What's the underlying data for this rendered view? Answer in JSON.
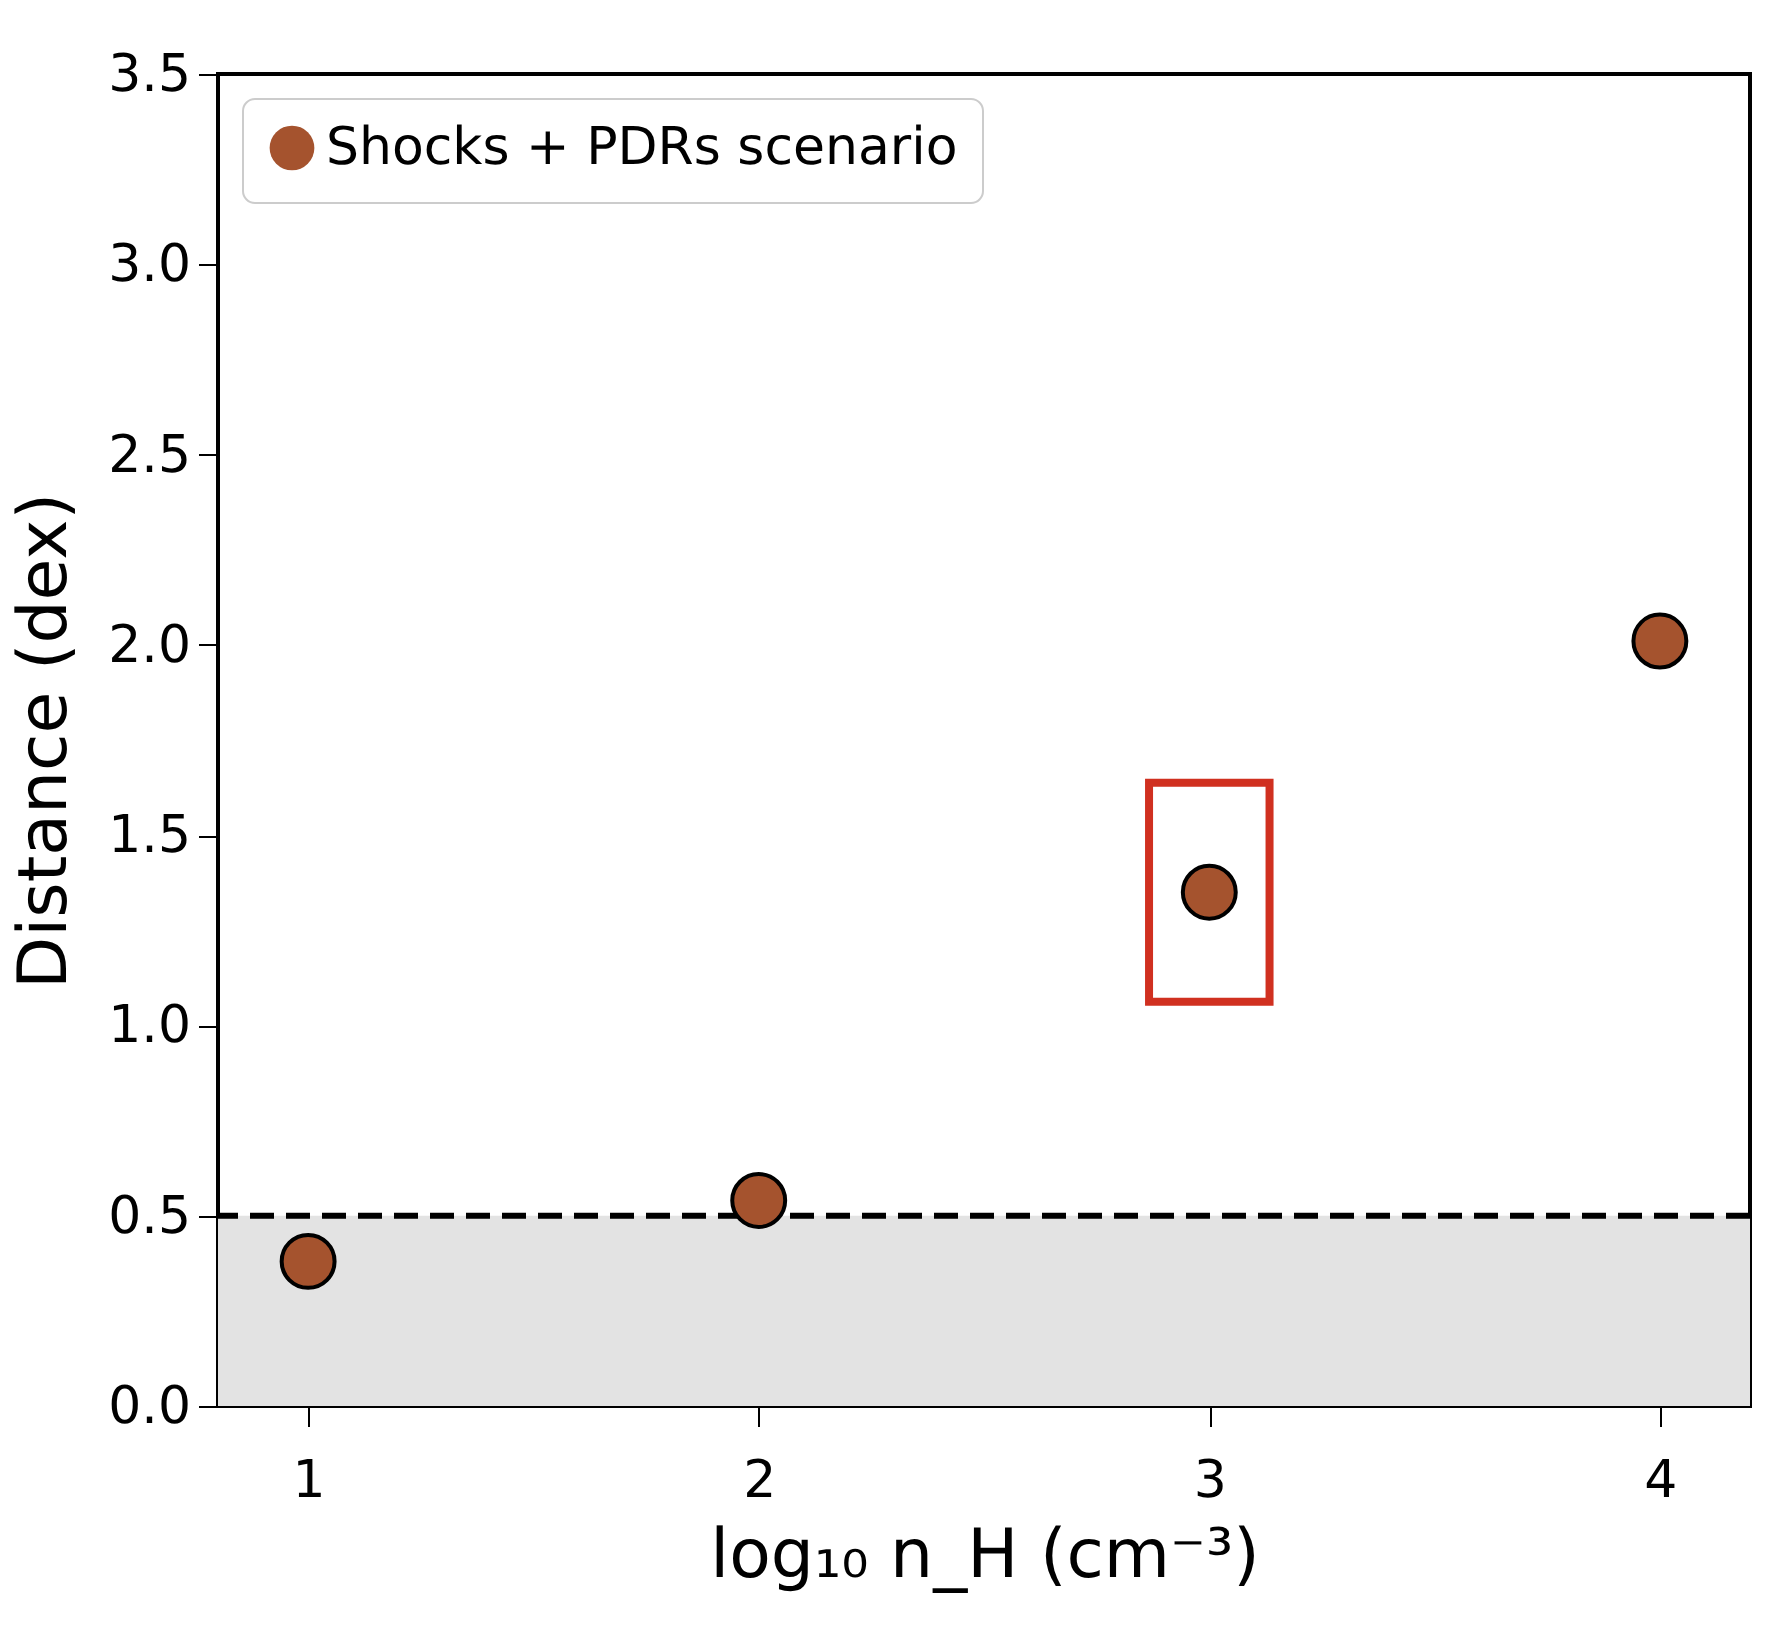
{
  "chart_data": {
    "type": "scatter",
    "xlabel": "log₁₀ n_H (cm⁻³)",
    "ylabel": "Distance (dex)",
    "x": [
      1,
      2,
      3,
      4
    ],
    "series": [
      {
        "name": "Shocks + PDRs scenario",
        "color": "#a5532e",
        "values": [
          0.38,
          0.54,
          1.35,
          2.01
        ]
      }
    ],
    "xlim": [
      0.8,
      4.2
    ],
    "xticks": [
      1,
      2,
      3,
      4
    ],
    "ylim": [
      0,
      3.5
    ],
    "yticks": [
      {
        "value": 0,
        "label": "0.0"
      },
      0.5,
      {
        "value": 1,
        "label": "1.0"
      },
      1.5,
      {
        "value": 2,
        "label": "2.0"
      },
      2.5,
      {
        "value": 3,
        "label": "3.0"
      },
      3.5
    ],
    "ref_lines": [
      {
        "axis": "y",
        "value": 0.5,
        "color": "#000000",
        "line_style": "dashed"
      }
    ],
    "bands": [
      {
        "axis": "y",
        "from": 0,
        "to": 0.5,
        "color": "#e3e3e3"
      }
    ],
    "marker": "circle",
    "legend": "top left",
    "grid": false
  }
}
